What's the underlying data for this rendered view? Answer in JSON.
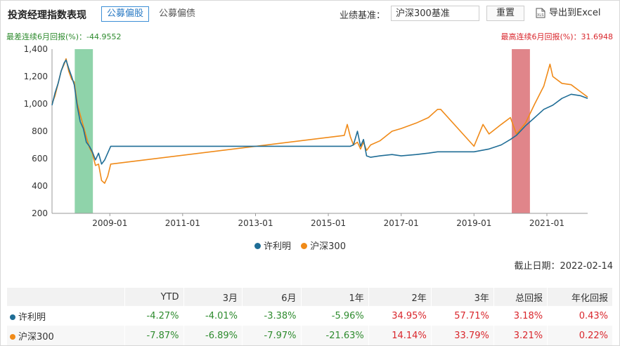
{
  "header": {
    "title": "投资经理指数表现",
    "tab_active": "公募偏股",
    "tab_other": "公募偏债",
    "benchmark_label": "业绩基准：",
    "benchmark_value": "沪深300基准",
    "reset_label": "重置",
    "export_label": "导出到Excel"
  },
  "stats": {
    "worst": "最差连续6月回报(%)：-44.9552",
    "best": "最高连续6月回报(%)：31.6948"
  },
  "colors": {
    "manager": "#1f6d96",
    "hs300": "#f08a18",
    "worst_band": "#8fd3aa",
    "best_band": "#e0858a"
  },
  "legend": [
    "许利明",
    "沪深300"
  ],
  "cutoff_date": "截止日期：2022-02-14",
  "chart_data": {
    "type": "line",
    "ylim": [
      200,
      1400
    ],
    "yticks": [
      "200",
      "400",
      "600",
      "800",
      "1,000",
      "1,200",
      "1,400"
    ],
    "xlim": [
      "2007-06-01",
      "2022-02-14"
    ],
    "xticks": [
      "2009-01",
      "2011-01",
      "2013-01",
      "2015-01",
      "2017-01",
      "2019-01",
      "2021-01"
    ],
    "worst_period": [
      "2008-01-15",
      "2008-07-15"
    ],
    "best_period": [
      "2020-01-15",
      "2020-07-15"
    ],
    "series": [
      {
        "name": "许利明",
        "x": [
          "2007-06-01",
          "2007-07-01",
          "2007-08-01",
          "2007-09-01",
          "2007-10-01",
          "2007-10-20",
          "2007-11-15",
          "2007-12-15",
          "2008-01-10",
          "2008-02-10",
          "2008-03-10",
          "2008-04-10",
          "2008-05-10",
          "2008-06-10",
          "2008-07-10",
          "2008-08-10",
          "2008-09-10",
          "2008-10-10",
          "2008-11-10",
          "2008-12-10",
          "2009-01-10",
          "2015-08-10",
          "2015-09-10",
          "2015-10-20",
          "2015-11-20",
          "2015-12-20",
          "2016-01-20",
          "2016-03-01",
          "2016-06-01",
          "2016-10-01",
          "2017-01-01",
          "2017-06-01",
          "2017-10-01",
          "2018-01-01",
          "2018-07-01",
          "2019-01-01",
          "2019-06-01",
          "2019-10-01",
          "2020-01-01",
          "2020-03-01",
          "2020-06-01",
          "2020-09-01",
          "2020-12-01",
          "2021-03-01",
          "2021-06-01",
          "2021-09-01",
          "2021-12-01",
          "2022-02-14"
        ],
        "values": [
          990,
          1080,
          1150,
          1240,
          1300,
          1320,
          1260,
          1200,
          1140,
          980,
          870,
          820,
          720,
          690,
          650,
          590,
          640,
          560,
          590,
          640,
          690,
          690,
          700,
          800,
          690,
          740,
          620,
          610,
          620,
          630,
          620,
          630,
          640,
          650,
          650,
          650,
          670,
          700,
          740,
          770,
          840,
          900,
          960,
          990,
          1040,
          1070,
          1060,
          1040
        ]
      },
      {
        "name": "沪深300",
        "x": [
          "2007-06-01",
          "2007-07-01",
          "2007-08-01",
          "2007-09-01",
          "2007-10-01",
          "2007-10-20",
          "2007-11-15",
          "2007-12-15",
          "2008-01-10",
          "2008-02-10",
          "2008-03-10",
          "2008-04-10",
          "2008-05-10",
          "2008-06-10",
          "2008-07-10",
          "2008-08-10",
          "2008-09-10",
          "2008-10-10",
          "2008-11-10",
          "2008-12-10",
          "2009-01-10",
          "2015-06-10",
          "2015-07-10",
          "2015-08-10",
          "2015-09-10",
          "2015-10-20",
          "2015-11-20",
          "2015-12-20",
          "2016-01-20",
          "2016-03-01",
          "2016-06-01",
          "2016-10-01",
          "2017-01-01",
          "2017-06-01",
          "2017-10-01",
          "2018-01-01",
          "2018-02-01",
          "2019-01-01",
          "2019-04-01",
          "2019-06-01",
          "2019-10-01",
          "2020-01-01",
          "2020-03-01",
          "2020-06-01",
          "2020-09-01",
          "2020-12-01",
          "2021-02-01",
          "2021-03-01",
          "2021-06-01",
          "2021-09-01",
          "2021-12-01",
          "2022-02-14"
        ],
        "values": [
          1000,
          1060,
          1150,
          1240,
          1290,
          1330,
          1240,
          1180,
          1160,
          1000,
          920,
          840,
          760,
          680,
          640,
          550,
          560,
          440,
          420,
          470,
          560,
          770,
          850,
          760,
          700,
          720,
          670,
          720,
          660,
          700,
          730,
          800,
          820,
          860,
          900,
          960,
          960,
          690,
          850,
          780,
          850,
          900,
          780,
          860,
          1000,
          1130,
          1290,
          1200,
          1150,
          1140,
          1090,
          1050
        ]
      }
    ]
  },
  "table": {
    "headers": [
      "",
      "YTD",
      "3月",
      "6月",
      "1年",
      "2年",
      "3年",
      "总回报",
      "年化回报"
    ],
    "rows": [
      {
        "name": "许利明",
        "values": [
          "-4.27%",
          "-4.01%",
          "-3.38%",
          "-5.96%",
          "34.95%",
          "57.71%",
          "3.18%",
          "0.43%"
        ]
      },
      {
        "name": "沪深300",
        "values": [
          "-7.87%",
          "-6.89%",
          "-7.97%",
          "-21.63%",
          "14.14%",
          "33.79%",
          "3.21%",
          "0.22%"
        ]
      }
    ]
  }
}
